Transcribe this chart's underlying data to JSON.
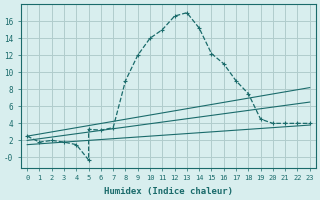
{
  "xlabel": "Humidex (Indice chaleur)",
  "background_color": "#d8eeee",
  "grid_color": "#b0cccc",
  "line_color": "#1a6b6b",
  "xlim": [
    -0.5,
    23.5
  ],
  "ylim": [
    -1.2,
    18
  ],
  "xticks": [
    0,
    1,
    2,
    3,
    4,
    5,
    6,
    7,
    8,
    9,
    10,
    11,
    12,
    13,
    14,
    15,
    16,
    17,
    18,
    19,
    20,
    21,
    22,
    23
  ],
  "yticks": [
    0,
    2,
    4,
    6,
    8,
    10,
    12,
    14,
    16
  ],
  "ytick_labels": [
    "-0",
    "2",
    "4",
    "6",
    "8",
    "10",
    "12",
    "14",
    "16"
  ],
  "curve1_x": [
    0,
    1,
    2,
    3,
    4,
    5,
    5,
    6,
    7,
    8,
    9,
    10,
    11,
    12,
    13,
    14,
    15,
    16,
    17,
    18,
    19,
    20,
    21,
    22,
    23
  ],
  "curve1_y": [
    2.5,
    1.8,
    2.0,
    1.8,
    1.5,
    -0.3,
    3.3,
    3.2,
    3.5,
    9.0,
    12.0,
    14.0,
    15.0,
    16.6,
    17.0,
    15.2,
    12.2,
    11.0,
    9.0,
    7.5,
    4.5,
    4.0,
    4.0,
    4.0,
    4.0
  ],
  "line1_x": [
    0,
    23
  ],
  "line1_y": [
    2.5,
    8.2
  ],
  "line2_x": [
    0,
    23
  ],
  "line2_y": [
    2.0,
    6.5
  ],
  "line3_x": [
    0,
    23
  ],
  "line3_y": [
    1.5,
    3.8
  ]
}
